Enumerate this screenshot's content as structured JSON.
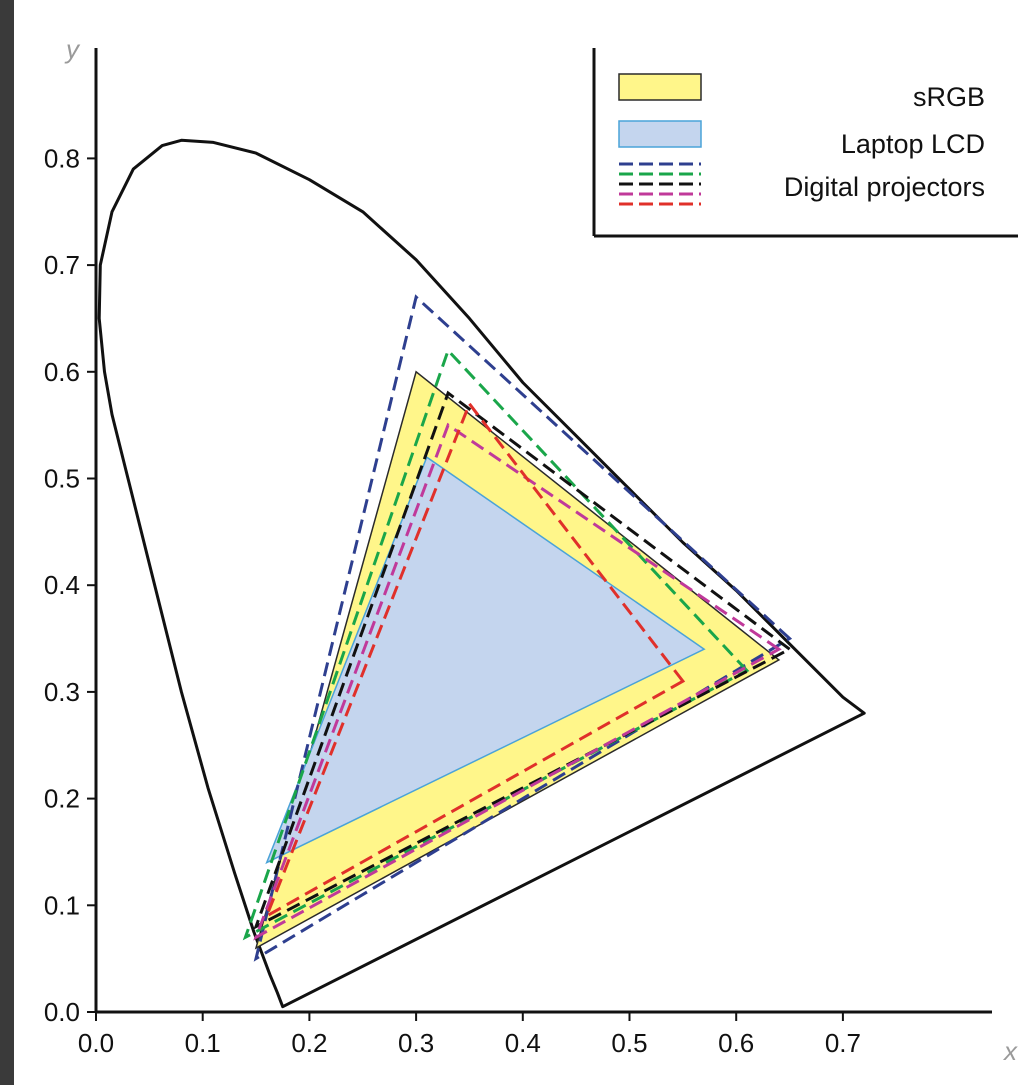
{
  "chart_data": {
    "type": "line",
    "xlabel": "x",
    "ylabel": "y",
    "xlim": [
      0.0,
      0.8
    ],
    "ylim": [
      0.0,
      0.87
    ],
    "xticks": [
      "0.0",
      "0.1",
      "0.2",
      "0.3",
      "0.4",
      "0.5",
      "0.6",
      "0.7"
    ],
    "yticks": [
      "0.0",
      "0.1",
      "0.2",
      "0.3",
      "0.4",
      "0.5",
      "0.6",
      "0.7",
      "0.8"
    ],
    "grid": false,
    "legend_position": "top-right",
    "legend": [
      {
        "label": "sRGB"
      },
      {
        "label": "Laptop LCD"
      },
      {
        "label": "Digital projectors"
      }
    ],
    "locus": [
      [
        0.175,
        0.005
      ],
      [
        0.17,
        0.018
      ],
      [
        0.163,
        0.035
      ],
      [
        0.148,
        0.075
      ],
      [
        0.13,
        0.13
      ],
      [
        0.105,
        0.21
      ],
      [
        0.08,
        0.3
      ],
      [
        0.055,
        0.4
      ],
      [
        0.03,
        0.5
      ],
      [
        0.015,
        0.56
      ],
      [
        0.008,
        0.6
      ],
      [
        0.003,
        0.65
      ],
      [
        0.004,
        0.7
      ],
      [
        0.015,
        0.75
      ],
      [
        0.035,
        0.79
      ],
      [
        0.062,
        0.812
      ],
      [
        0.08,
        0.817
      ],
      [
        0.11,
        0.815
      ],
      [
        0.15,
        0.805
      ],
      [
        0.2,
        0.78
      ],
      [
        0.25,
        0.75
      ],
      [
        0.3,
        0.705
      ],
      [
        0.35,
        0.65
      ],
      [
        0.4,
        0.59
      ],
      [
        0.45,
        0.54
      ],
      [
        0.5,
        0.49
      ],
      [
        0.55,
        0.44
      ],
      [
        0.6,
        0.395
      ],
      [
        0.65,
        0.345
      ],
      [
        0.7,
        0.295
      ],
      [
        0.72,
        0.28
      ]
    ],
    "series": [
      {
        "kind": "fill",
        "color": "#fff68a",
        "stroke": "#2a2a2a",
        "points": [
          [
            0.64,
            0.33
          ],
          [
            0.3,
            0.6
          ],
          [
            0.15,
            0.06
          ]
        ]
      },
      {
        "kind": "fill",
        "color": "#c4d5ee",
        "stroke": "#4aa3d8",
        "points": [
          [
            0.57,
            0.34
          ],
          [
            0.31,
            0.52
          ],
          [
            0.16,
            0.14
          ]
        ]
      },
      {
        "kind": "dashed",
        "color": "#2e3f8f",
        "points": [
          [
            0.65,
            0.35
          ],
          [
            0.3,
            0.67
          ],
          [
            0.15,
            0.05
          ]
        ]
      },
      {
        "kind": "dashed",
        "color": "#1aa64a",
        "points": [
          [
            0.61,
            0.32
          ],
          [
            0.33,
            0.62
          ],
          [
            0.14,
            0.07
          ]
        ]
      },
      {
        "kind": "dashed",
        "color": "#111111",
        "points": [
          [
            0.65,
            0.34
          ],
          [
            0.33,
            0.58
          ],
          [
            0.15,
            0.08
          ]
        ]
      },
      {
        "kind": "dashed",
        "color": "#c0399a",
        "points": [
          [
            0.64,
            0.34
          ],
          [
            0.33,
            0.55
          ],
          [
            0.15,
            0.07
          ]
        ]
      },
      {
        "kind": "dashed",
        "color": "#e0302a",
        "points": [
          [
            0.55,
            0.31
          ],
          [
            0.35,
            0.57
          ],
          [
            0.16,
            0.09
          ]
        ]
      }
    ]
  }
}
